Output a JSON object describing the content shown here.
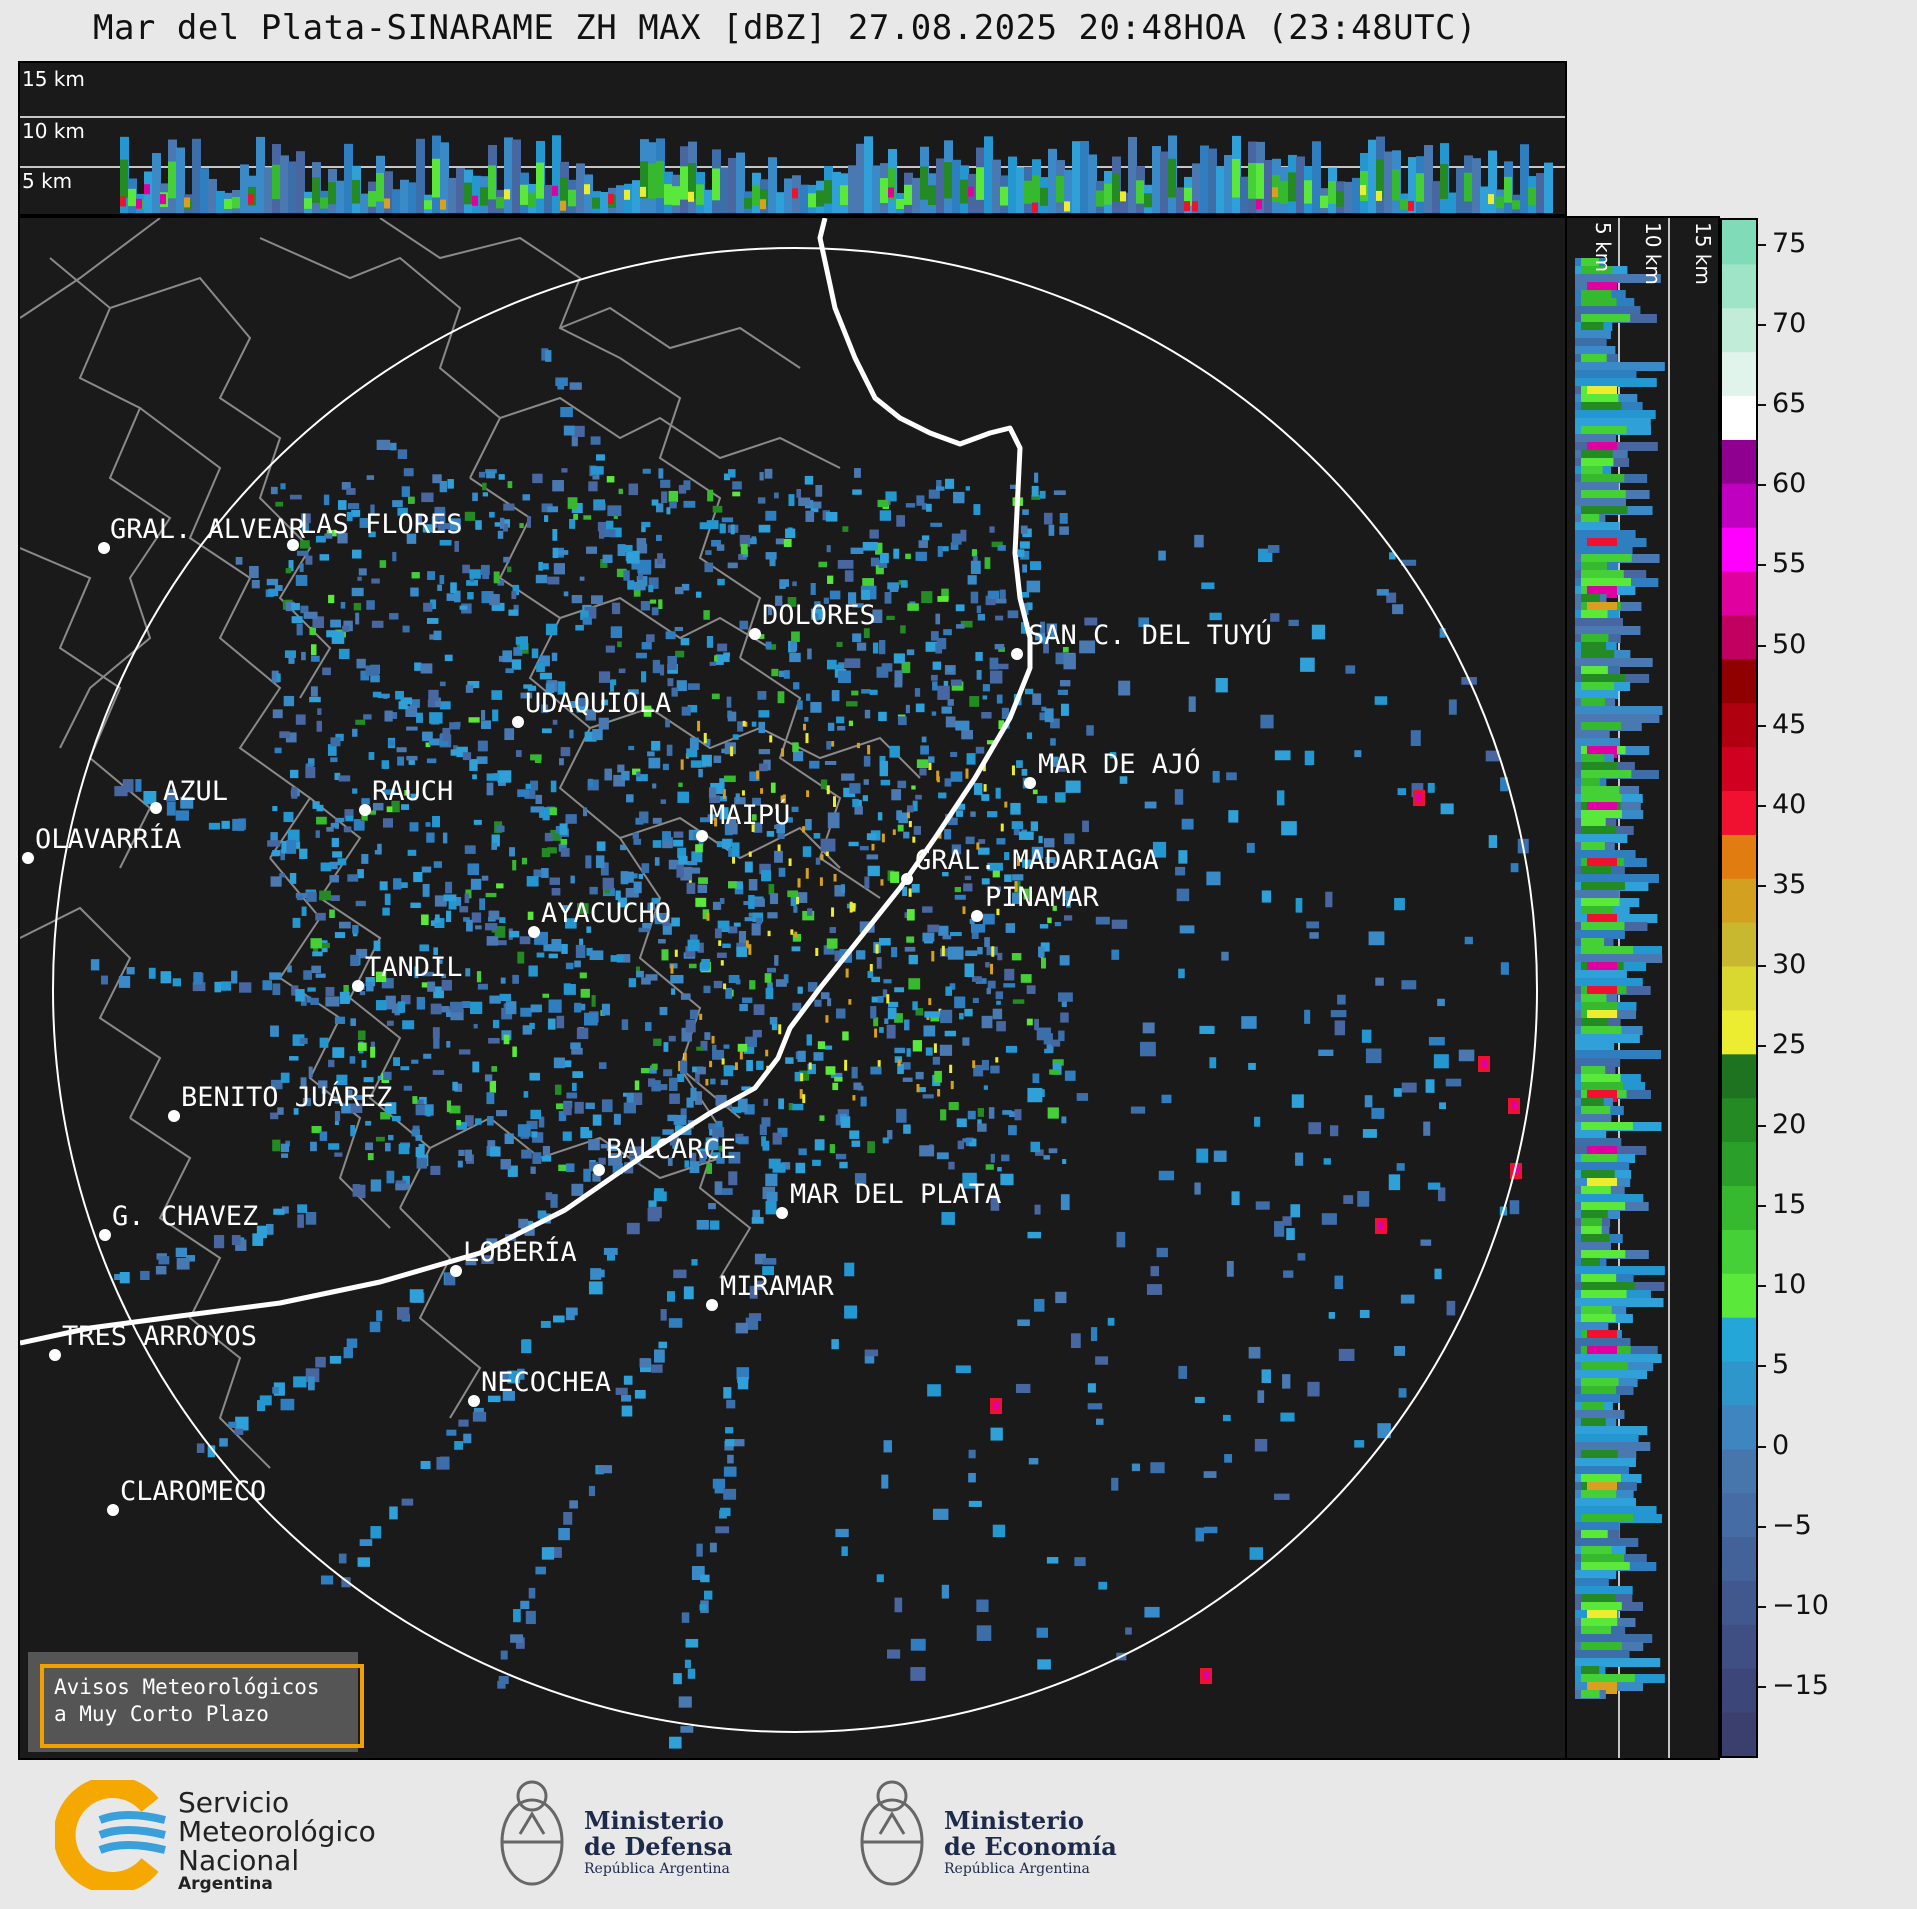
{
  "title": "Mar del Plata-SINARAME ZH MAX [dBZ] 27.08.2025 20:48HOA (23:48UTC)",
  "top_panel": {
    "labels": [
      "15 km",
      "10 km",
      "5 km"
    ]
  },
  "side_panel": {
    "labels": [
      "5 km",
      "10 km",
      "15 km"
    ]
  },
  "colorbar": {
    "ticks": [
      "75",
      "70",
      "65",
      "60",
      "55",
      "50",
      "45",
      "40",
      "35",
      "30",
      "25",
      "20",
      "15",
      "10",
      "5",
      "0",
      "−5",
      "−10",
      "−15"
    ],
    "colors": [
      "#3a3f6e",
      "#3d4678",
      "#3f4f84",
      "#41588f",
      "#43629a",
      "#456ca4",
      "#4776ad",
      "#3f86c0",
      "#2f96cc",
      "#24a7d8",
      "#5ae83a",
      "#45d038",
      "#36b82f",
      "#2aa02a",
      "#238a24",
      "#1e7320",
      "#ecec30",
      "#d8d830",
      "#c8b830",
      "#d4a020",
      "#e07c10",
      "#f01030",
      "#d00020",
      "#b00010",
      "#900000",
      "#c00060",
      "#e000a0",
      "#ff00ff",
      "#c000c0",
      "#900090",
      "#ffffff",
      "#e0f4ec",
      "#c0ecd8",
      "#a0e4c8",
      "#80dcb8"
    ]
  },
  "cities": [
    {
      "name": "GRAL. ALVEAR"
    },
    {
      "name": "LAS FLORES"
    },
    {
      "name": "DOLORES"
    },
    {
      "name": "SAN C. DEL TUYÚ"
    },
    {
      "name": "UDAQUIOLA"
    },
    {
      "name": "MAR DE AJÓ"
    },
    {
      "name": "AZUL"
    },
    {
      "name": "RAUCH"
    },
    {
      "name": "OLAVARRÍA"
    },
    {
      "name": "MAIPÚ"
    },
    {
      "name": "GRAL. MADARIAGA"
    },
    {
      "name": "PINAMAR"
    },
    {
      "name": "AYACUCHO"
    },
    {
      "name": "TANDIL"
    },
    {
      "name": "BENITO JUÁREZ"
    },
    {
      "name": "BALCARCE"
    },
    {
      "name": "MAR DEL PLATA"
    },
    {
      "name": "G. CHAVEZ"
    },
    {
      "name": "LOBERÍA"
    },
    {
      "name": "MIRAMAR"
    },
    {
      "name": "TRES ARROYOS"
    },
    {
      "name": "NECOCHEA"
    },
    {
      "name": "CLAROMECO"
    }
  ],
  "warning_box": {
    "line1": "Avisos Meteorológicos",
    "line2": "a Muy Corto Plazo"
  },
  "footer": {
    "smn": {
      "line1": "Servicio",
      "line2": "Meteorológico",
      "line3": "Nacional",
      "line4": "Argentina"
    },
    "defensa": {
      "line1": "Ministerio",
      "line2": "de Defensa",
      "line3": "República Argentina"
    },
    "economia": {
      "line1": "Ministerio",
      "line2": "de Economía",
      "line3": "República Argentina"
    }
  }
}
